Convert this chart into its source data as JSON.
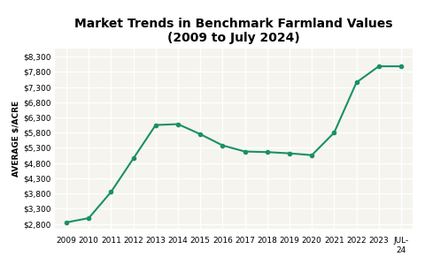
{
  "title_line1": "Market Trends in Benchmark Farmland Values",
  "title_line2": "(2009 to July 2024)",
  "ylabel": "AVERAGE $/ACRE",
  "x_labels": [
    "2009",
    "2010",
    "2011",
    "2012",
    "2013",
    "2014",
    "2015",
    "2016",
    "2017",
    "2018",
    "2019",
    "2020",
    "2021",
    "2022",
    "2023",
    "JUL-\n24"
  ],
  "x_positions": [
    0,
    1,
    2,
    3,
    4,
    5,
    6,
    7,
    8,
    9,
    10,
    11,
    12,
    13,
    14,
    15
  ],
  "values": [
    2850,
    2990,
    3850,
    4950,
    6050,
    6080,
    5750,
    5380,
    5180,
    5160,
    5120,
    5060,
    5800,
    7450,
    7980,
    7980
  ],
  "line_color": "#1a9068",
  "marker": "o",
  "marker_size": 3,
  "linewidth": 1.5,
  "ylim": [
    2650,
    8550
  ],
  "yticks": [
    2800,
    3300,
    3800,
    4300,
    4800,
    5300,
    5800,
    6300,
    6800,
    7300,
    7800,
    8300
  ],
  "bg_color": "#ffffff",
  "plot_bg_color": "#f5f4ef",
  "grid_color": "#ffffff",
  "title_fontsize": 10,
  "label_fontsize": 6.5,
  "tick_fontsize": 6.5,
  "ylabel_fontsize": 6.5
}
